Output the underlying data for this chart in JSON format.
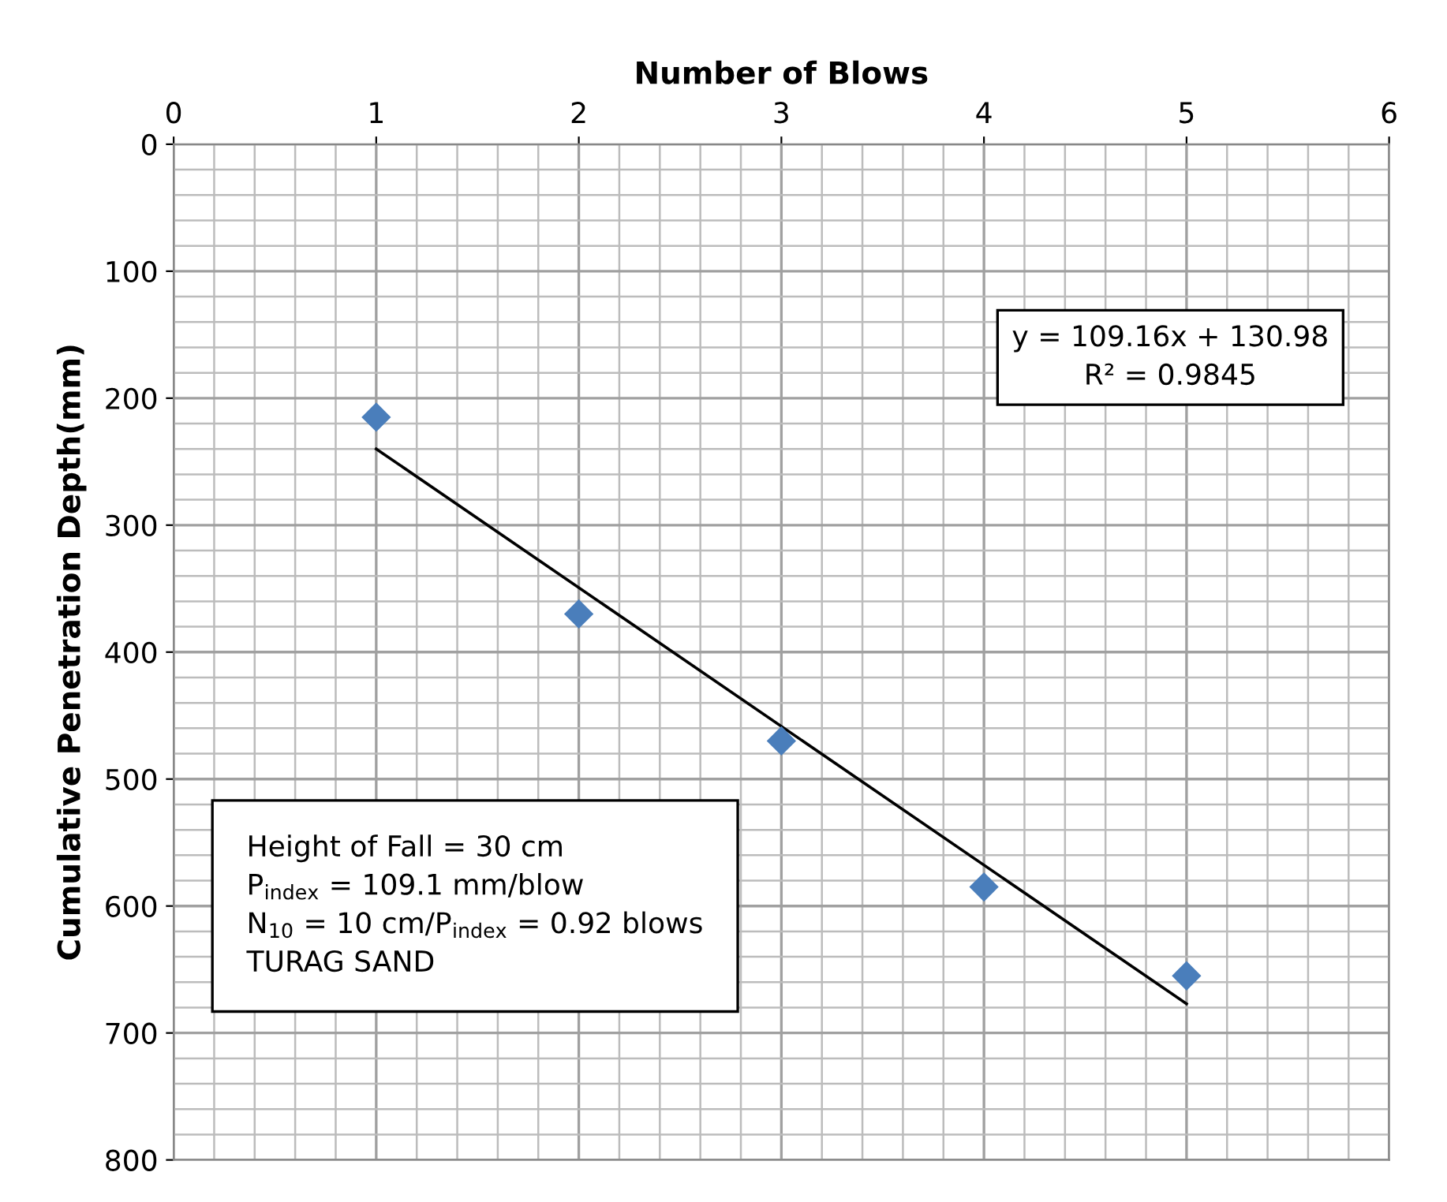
{
  "chart_data": {
    "type": "scatter",
    "xlabel": "Number of Blows",
    "ylabel": "Cumulative Penetration Depth(mm)",
    "series": [
      {
        "color": "#4a7ebb",
        "marker": "diamond",
        "x": [
          1,
          2,
          3,
          4,
          5
        ],
        "values": [
          215,
          370,
          470,
          585,
          655
        ]
      },
      {
        "type": "line",
        "color": "#000000",
        "marker": "none",
        "line_style": "solid",
        "x": [
          1,
          5
        ],
        "values": [
          240,
          677
        ]
      }
    ],
    "xlim": [
      0,
      6
    ],
    "xticks": [
      0,
      1,
      2,
      3,
      4,
      5,
      6
    ],
    "ylim": [
      800,
      0
    ],
    "yticks": [
      0,
      100,
      200,
      300,
      400,
      500,
      600,
      700,
      800
    ],
    "grid": true,
    "legend": false,
    "annotations": [
      "y = 109.16x + 130.98\nR² = 0.9845",
      "Height of Fall = 30 cm\nP$_{index}$ = 109.1 mm/blow\nN$_{10}$ = 10 cm/P$_{index}$ = 0.92 blows\nTURAG SAND"
    ]
  }
}
